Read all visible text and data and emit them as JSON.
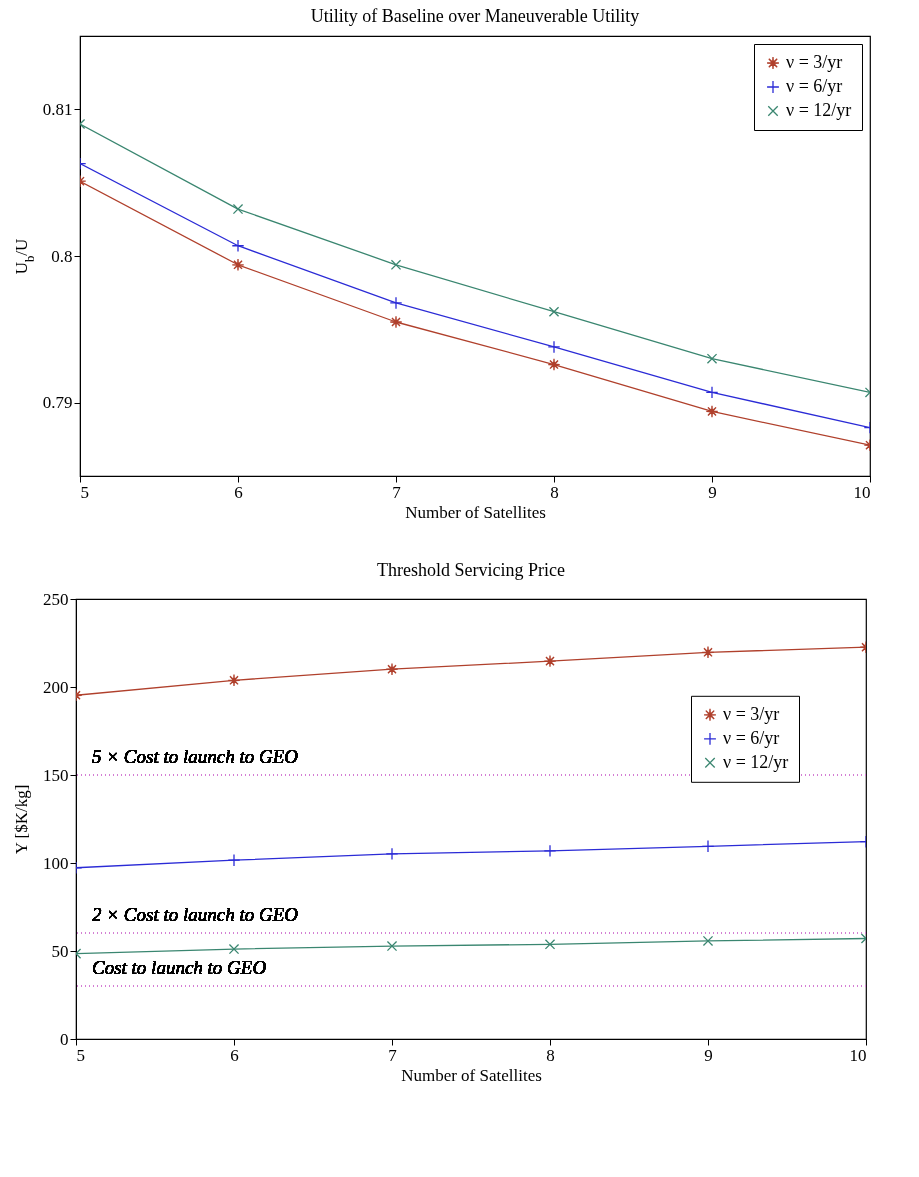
{
  "chart_data": [
    {
      "type": "line",
      "title": "Utility of Baseline over Maneuverable Utility",
      "xlabel": "Number of Satellites",
      "ylabel": "U$_{b}$/U",
      "x": [
        5,
        6,
        7,
        8,
        9,
        10
      ],
      "xlim": [
        5,
        10
      ],
      "xticks": [
        5,
        6,
        7,
        8,
        9,
        10
      ],
      "ylim": [
        0.785,
        0.815
      ],
      "yticks": [
        0.79,
        0.8,
        0.81
      ],
      "legend": "top right",
      "series": [
        {
          "name": "ν = 3/yr",
          "color": "#b0402c",
          "marker": "star",
          "values": [
            0.8051,
            0.7994,
            0.7955,
            0.7926,
            0.7894,
            0.7871
          ]
        },
        {
          "name": "ν = 6/yr",
          "color": "#2b2bd6",
          "marker": "plus",
          "values": [
            0.8063,
            0.8007,
            0.7968,
            0.7938,
            0.7907,
            0.7883
          ]
        },
        {
          "name": "ν = 12/yr",
          "color": "#3a8670",
          "marker": "cross",
          "values": [
            0.809,
            0.8032,
            0.7994,
            0.7962,
            0.793,
            0.7907
          ]
        }
      ]
    },
    {
      "type": "line",
      "title": "Threshold Servicing Price",
      "xlabel": "Number of Satellites",
      "ylabel": "Υ [$K/kg]",
      "x": [
        5,
        6,
        7,
        8,
        9,
        10
      ],
      "xlim": [
        5,
        10
      ],
      "xticks": [
        5,
        6,
        7,
        8,
        9,
        10
      ],
      "ylim": [
        0,
        250
      ],
      "yticks": [
        0,
        50,
        100,
        150,
        200,
        250
      ],
      "legend": "right",
      "series": [
        {
          "name": "ν = 3/yr",
          "color": "#b0402c",
          "marker": "star",
          "values": [
            195.3,
            203.8,
            210.1,
            214.7,
            219.7,
            222.6
          ]
        },
        {
          "name": "ν = 6/yr",
          "color": "#2b2bd6",
          "marker": "plus",
          "values": [
            97.3,
            101.6,
            105.2,
            106.9,
            109.5,
            112.1
          ]
        },
        {
          "name": "ν = 12/yr",
          "color": "#3a8670",
          "marker": "cross",
          "values": [
            48.5,
            51.1,
            52.8,
            53.8,
            55.7,
            57.1
          ]
        }
      ],
      "ref_lines": [
        {
          "axis": "y",
          "value": 150,
          "label": "5 × Cost to launch to GEO",
          "color": "#d37fd3",
          "line_style": "dotted"
        },
        {
          "axis": "y",
          "value": 60,
          "label": "2 × Cost to launch to GEO",
          "color": "#d37fd3",
          "line_style": "dotted"
        },
        {
          "axis": "y",
          "value": 30,
          "label": "Cost to launch to GEO",
          "color": "#d37fd3",
          "line_style": "dotted"
        }
      ]
    }
  ]
}
